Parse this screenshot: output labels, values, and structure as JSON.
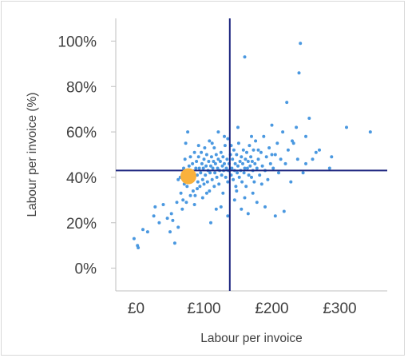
{
  "chart_data": {
    "type": "scatter",
    "title": "",
    "xlabel": "Labour per invoice",
    "ylabel": "Labour per invoice (%)",
    "xlim": [
      -30,
      370
    ],
    "ylim": [
      -10,
      110
    ],
    "x_ticks": [
      {
        "value": 0,
        "label": "£0"
      },
      {
        "value": 100,
        "label": "£100"
      },
      {
        "value": 200,
        "label": "£200"
      },
      {
        "value": 300,
        "label": "£300"
      }
    ],
    "y_ticks": [
      {
        "value": 0,
        "label": "0%"
      },
      {
        "value": 20,
        "label": "20%"
      },
      {
        "value": 40,
        "label": "40%"
      },
      {
        "value": 60,
        "label": "60%"
      },
      {
        "value": 80,
        "label": "80%"
      },
      {
        "value": 100,
        "label": "100%"
      }
    ],
    "grid": false,
    "colors": {
      "points": "#4a98e0",
      "highlight": "#f9b13c",
      "reference_lines": "#1a237e"
    },
    "reference_lines": {
      "x": 138,
      "y": 43
    },
    "highlight_point": {
      "x": 77,
      "y": 40.5
    },
    "series": [
      {
        "points": [
          [
            -3,
            13
          ],
          [
            2,
            10
          ],
          [
            3,
            9
          ],
          [
            10,
            17
          ],
          [
            17,
            16
          ],
          [
            26,
            23
          ],
          [
            28,
            27
          ],
          [
            34,
            20
          ],
          [
            40,
            28
          ],
          [
            50,
            16
          ],
          [
            52,
            24
          ],
          [
            57,
            11
          ],
          [
            60,
            29
          ],
          [
            62,
            39
          ],
          [
            65,
            40
          ],
          [
            66,
            33
          ],
          [
            69,
            30
          ],
          [
            70,
            44
          ],
          [
            71,
            37
          ],
          [
            72,
            48
          ],
          [
            73,
            55
          ],
          [
            74,
            43
          ],
          [
            75,
            36
          ],
          [
            76,
            60
          ],
          [
            78,
            45
          ],
          [
            79,
            42
          ],
          [
            80,
            49
          ],
          [
            81,
            38
          ],
          [
            83,
            46
          ],
          [
            84,
            34
          ],
          [
            85,
            40
          ],
          [
            86,
            51
          ],
          [
            87,
            32
          ],
          [
            88,
            44
          ],
          [
            89,
            47
          ],
          [
            90,
            41
          ],
          [
            91,
            38
          ],
          [
            92,
            49
          ],
          [
            93,
            44
          ],
          [
            94,
            36
          ],
          [
            95,
            42
          ],
          [
            96,
            51
          ],
          [
            97,
            46
          ],
          [
            98,
            39
          ],
          [
            99,
            44
          ],
          [
            100,
            48
          ],
          [
            100,
            37
          ],
          [
            101,
            53
          ],
          [
            102,
            41
          ],
          [
            103,
            45
          ],
          [
            104,
            50
          ],
          [
            105,
            38
          ],
          [
            106,
            43
          ],
          [
            107,
            47
          ],
          [
            108,
            34
          ],
          [
            108,
            56
          ],
          [
            109,
            42
          ],
          [
            110,
            45
          ],
          [
            111,
            49
          ],
          [
            112,
            39
          ],
          [
            113,
            44
          ],
          [
            114,
            47
          ],
          [
            115,
            53
          ],
          [
            115,
            36
          ],
          [
            116,
            42
          ],
          [
            117,
            46
          ],
          [
            118,
            50
          ],
          [
            119,
            40
          ],
          [
            120,
            44
          ],
          [
            121,
            60
          ],
          [
            121,
            48
          ],
          [
            122,
            37
          ],
          [
            123,
            43
          ],
          [
            124,
            47
          ],
          [
            125,
            51
          ],
          [
            126,
            41
          ],
          [
            127,
            45
          ],
          [
            128,
            49
          ],
          [
            128,
            33
          ],
          [
            129,
            43
          ],
          [
            130,
            46
          ],
          [
            131,
            54
          ],
          [
            132,
            40
          ],
          [
            133,
            44
          ],
          [
            134,
            48
          ],
          [
            135,
            38
          ],
          [
            135,
            57
          ],
          [
            136,
            43
          ],
          [
            137,
            46
          ],
          [
            139,
            50
          ],
          [
            140,
            41
          ],
          [
            141,
            44
          ],
          [
            142,
            48
          ],
          [
            143,
            39
          ],
          [
            144,
            52
          ],
          [
            145,
            43
          ],
          [
            146,
            46
          ],
          [
            147,
            36
          ],
          [
            148,
            50
          ],
          [
            149,
            42
          ],
          [
            150,
            45
          ],
          [
            151,
            55
          ],
          [
            152,
            40
          ],
          [
            153,
            47
          ],
          [
            154,
            43
          ],
          [
            155,
            49
          ],
          [
            156,
            38
          ],
          [
            157,
            46
          ],
          [
            158,
            52
          ],
          [
            159,
            42
          ],
          [
            160,
            44
          ],
          [
            161,
            48
          ],
          [
            162,
            36
          ],
          [
            163,
            51
          ],
          [
            164,
            44
          ],
          [
            165,
            47
          ],
          [
            166,
            41
          ],
          [
            167,
            54
          ],
          [
            168,
            45
          ],
          [
            169,
            49
          ],
          [
            170,
            40
          ],
          [
            171,
            47
          ],
          [
            172,
            43
          ],
          [
            173,
            52
          ],
          [
            174,
            38
          ],
          [
            175,
            46
          ],
          [
            176,
            56
          ],
          [
            178,
            44
          ],
          [
            180,
            48
          ],
          [
            182,
            41
          ],
          [
            184,
            51
          ],
          [
            186,
            45
          ],
          [
            188,
            58
          ],
          [
            190,
            43
          ],
          [
            192,
            49
          ],
          [
            194,
            39
          ],
          [
            196,
            53
          ],
          [
            198,
            46
          ],
          [
            200,
            63
          ],
          [
            202,
            44
          ],
          [
            205,
            50
          ],
          [
            208,
            55
          ],
          [
            210,
            42
          ],
          [
            213,
            48
          ],
          [
            216,
            60
          ],
          [
            220,
            46
          ],
          [
            222,
            73
          ],
          [
            224,
            52
          ],
          [
            228,
            38
          ],
          [
            232,
            55
          ],
          [
            236,
            62
          ],
          [
            238,
            48
          ],
          [
            240,
            86
          ],
          [
            242,
            99
          ],
          [
            246,
            42
          ],
          [
            250,
            58
          ],
          [
            255,
            66
          ],
          [
            260,
            48
          ],
          [
            265,
            51
          ],
          [
            270,
            52
          ],
          [
            285,
            44
          ],
          [
            288,
            49
          ],
          [
            310,
            62
          ],
          [
            345,
            60
          ],
          [
            160,
            93
          ],
          [
            145,
            30
          ],
          [
            125,
            27
          ],
          [
            118,
            26
          ],
          [
            165,
            24
          ],
          [
            178,
            29
          ],
          [
            190,
            27
          ],
          [
            205,
            23
          ],
          [
            218,
            25
          ],
          [
            98,
            31
          ],
          [
            86,
            28
          ],
          [
            62,
            18
          ],
          [
            110,
            20
          ],
          [
            135,
            23
          ],
          [
            155,
            26
          ],
          [
            170,
            58
          ],
          [
            150,
            62
          ],
          [
            130,
            58
          ],
          [
            112,
            55
          ],
          [
            92,
            54
          ],
          [
            140,
            54
          ],
          [
            180,
            52
          ],
          [
            200,
            50
          ],
          [
            230,
            56
          ],
          [
            250,
            46
          ],
          [
            185,
            37
          ],
          [
            172,
            33
          ],
          [
            160,
            31
          ],
          [
            148,
            34
          ],
          [
            104,
            33
          ],
          [
            90,
            35
          ],
          [
            80,
            32
          ],
          [
            74,
            29
          ],
          [
            68,
            26
          ],
          [
            54,
            21
          ],
          [
            46,
            22
          ]
        ]
      }
    ]
  }
}
